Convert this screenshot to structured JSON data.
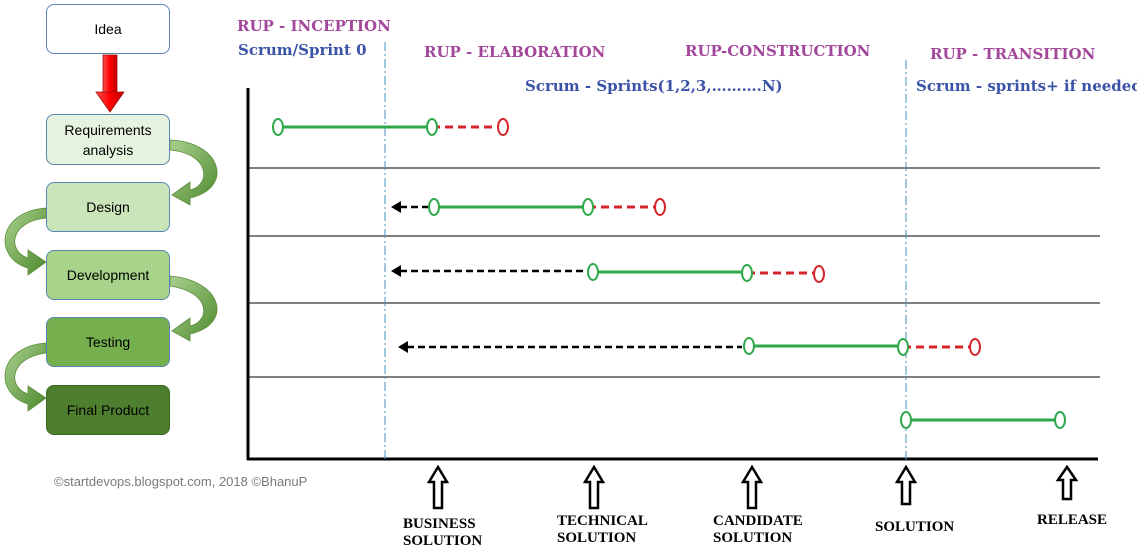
{
  "flow": {
    "idea": "Idea",
    "requirements_line1": "Requirements",
    "requirements_line2": "analysis",
    "design": "Design",
    "development": "Development",
    "testing": "Testing",
    "final_product": "Final Product"
  },
  "phases": {
    "inception": "RUP -  INCEPTION",
    "inception_sub": "Scrum/Sprint 0",
    "elaboration": "RUP - ELABORATION",
    "construction": "RUP-CONSTRUCTION",
    "construction_sub": "Scrum - Sprints(1,2,3,……….N)",
    "transition": "RUP - TRANSITION",
    "transition_sub": "Scrum - sprints+ if needed"
  },
  "milestones": {
    "business_line1": "BUSINESS",
    "business_line2": "SOLUTION",
    "technical_line1": "TECHNICAL",
    "technical_line2": "SOLUTION",
    "candidate_line1": "CANDIDATE",
    "candidate_line2": "SOLUTION",
    "solution": "SOLUTION",
    "release": "RELEASE"
  },
  "copyright": "©startdevops.blogspot.com,  2018 ©BhanuP",
  "colors": {
    "green": "#2ea84a",
    "red": "#d6242b",
    "black": "#000000",
    "phase_purple": "#a3479b",
    "phase_blue": "#3b53a6",
    "divider_blue": "#4a8fc2",
    "arrow_green": "#70ad47"
  }
}
